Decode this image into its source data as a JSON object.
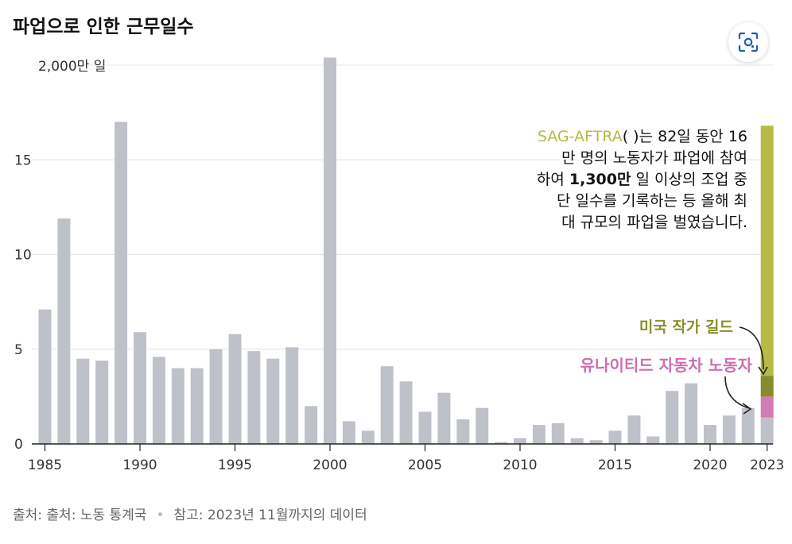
{
  "title": "파업으로 인한 근무일수",
  "colors": {
    "bar": "#bfc1c9",
    "sag": "#b5bb45",
    "wga": "#858c2c",
    "uaw": "#d27cb5",
    "grid": "#e4e4e4",
    "axis": "#222222"
  },
  "annotation": {
    "highlight": "SAG-AFTRA",
    "line1_rest": "( )는 82일 동안 16",
    "line2": "만 명의 노동자가 파업에 참여",
    "line3_pre": "하여 ",
    "line3_bold": "1,300만",
    "line3_post": " 일 이상의 조업 중",
    "line4": "단 일수를 기록하는 등 올해 최",
    "line5": "대 규모의 파업을 벌였습니다."
  },
  "labels": {
    "wga": "미국 작가 길드",
    "uaw": "유나이티드 자동차 노동자"
  },
  "footer": {
    "source": "출처: 출처: 노동 통계국",
    "note": "참고: 2023년 11월까지의 데이터"
  },
  "chart_data": {
    "type": "bar",
    "title": "파업으로 인한 근무일수",
    "ylabel": "2,000만 일",
    "ylim": [
      0,
      20
    ],
    "y_ticks": [
      0,
      5,
      10,
      15
    ],
    "y_tick_labels": [
      "0",
      "5",
      "10",
      "15"
    ],
    "y_top_label": "2,000만 일",
    "x_tick_labels": [
      "1985",
      "1990",
      "1995",
      "2000",
      "2005",
      "2010",
      "2015",
      "2020",
      "2023"
    ],
    "years": [
      1985,
      1986,
      1987,
      1988,
      1989,
      1990,
      1991,
      1992,
      1993,
      1994,
      1995,
      1996,
      1997,
      1998,
      1999,
      2000,
      2001,
      2002,
      2003,
      2004,
      2005,
      2006,
      2007,
      2008,
      2009,
      2010,
      2011,
      2012,
      2013,
      2014,
      2015,
      2016,
      2017,
      2018,
      2019,
      2020,
      2021,
      2022
    ],
    "values": [
      7.1,
      11.9,
      4.5,
      4.4,
      17.0,
      5.9,
      4.6,
      4.0,
      4.0,
      5.0,
      5.8,
      4.9,
      4.5,
      5.1,
      2.0,
      20.4,
      1.2,
      0.7,
      4.1,
      3.3,
      1.7,
      2.7,
      1.3,
      1.9,
      0.1,
      0.3,
      1.0,
      1.1,
      0.3,
      0.2,
      0.7,
      1.5,
      0.4,
      2.8,
      3.2,
      1.0,
      1.5,
      1.9
    ],
    "stacked_2023": [
      {
        "name": "기타",
        "value": 1.4
      },
      {
        "name": "유나이티드 자동차 노동자",
        "value": 1.1
      },
      {
        "name": "미국 작가 길드",
        "value": 1.1
      },
      {
        "name": "SAG-AFTRA",
        "value": 13.2
      }
    ]
  }
}
